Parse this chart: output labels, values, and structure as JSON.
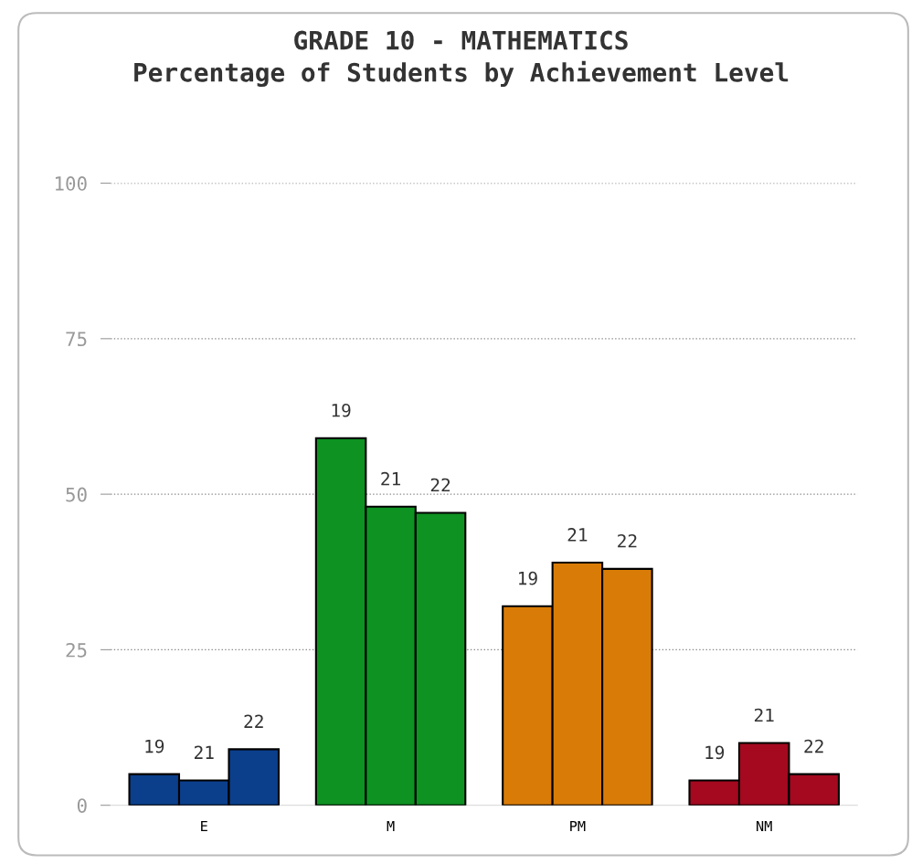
{
  "chart_data": {
    "type": "bar",
    "title": "GRADE 10 - MATHEMATICS\nPercentage of Students by Achievement Level",
    "categories": [
      "E",
      "M",
      "PM",
      "NM"
    ],
    "series": [
      {
        "name": "19",
        "colors": [
          "#0b3f8c",
          "#0e9222",
          "#d97c07",
          "#a4091f"
        ],
        "values": [
          5,
          59,
          32,
          4
        ]
      },
      {
        "name": "21",
        "colors": [
          "#0b3f8c",
          "#0e9222",
          "#d97c07",
          "#a4091f"
        ],
        "values": [
          4,
          48,
          39,
          10
        ]
      },
      {
        "name": "22",
        "colors": [
          "#0b3f8c",
          "#0e9222",
          "#d97c07",
          "#a4091f"
        ],
        "values": [
          9,
          47,
          38,
          5
        ]
      }
    ],
    "ylim": [
      0,
      100
    ],
    "yticks": [
      0,
      25,
      50,
      75,
      100
    ],
    "grid": "y",
    "legend": false
  }
}
